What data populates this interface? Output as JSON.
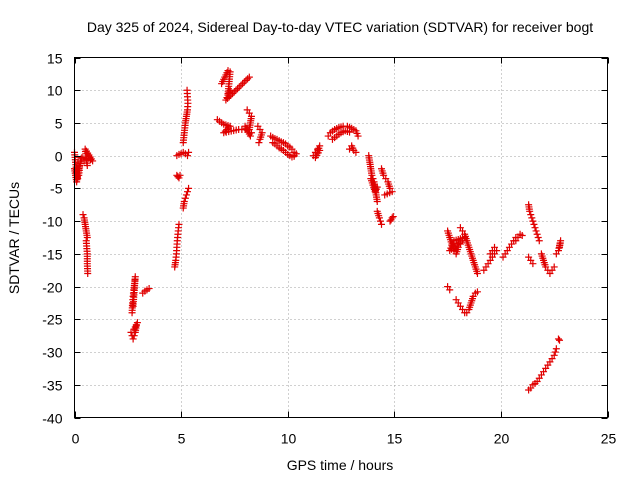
{
  "chart_data": {
    "type": "scatter",
    "title": "Day 325 of 2024, Sidereal Day-to-day VTEC variation (SDTVAR) for receiver bogt",
    "xlabel": "GPS time / hours",
    "ylabel": "SDTVAR / TECUs",
    "xlim": [
      0,
      25
    ],
    "ylim": [
      -40,
      15
    ],
    "xticks": [
      0,
      5,
      10,
      15,
      20,
      25
    ],
    "yticks": [
      15,
      10,
      5,
      0,
      -5,
      -10,
      -15,
      -20,
      -25,
      -30,
      -35,
      -40
    ],
    "grid": true,
    "marker": "+",
    "color": "#e00000",
    "segments": [
      [
        [
          0.0,
          0.5
        ],
        [
          0.05,
          -1.0
        ],
        [
          0.1,
          -2.5
        ],
        [
          0.15,
          -3.5
        ],
        [
          0.2,
          -3.0
        ],
        [
          0.25,
          -1.5
        ],
        [
          0.3,
          -0.5
        ],
        [
          0.35,
          -0.3
        ]
      ],
      [
        [
          0.0,
          -2.0
        ],
        [
          0.05,
          -3.0
        ],
        [
          0.1,
          -4.0
        ],
        [
          0.2,
          -2.0
        ],
        [
          0.3,
          -0.8
        ]
      ],
      [
        [
          0.35,
          -0.5
        ],
        [
          0.45,
          -0.8
        ],
        [
          0.55,
          -0.6
        ],
        [
          0.65,
          -0.4
        ],
        [
          0.75,
          -0.6
        ],
        [
          0.85,
          -0.8
        ],
        [
          0.5,
          1.0
        ],
        [
          0.6,
          -1.5
        ]
      ],
      [
        [
          0.4,
          -9.0
        ],
        [
          0.45,
          -9.5
        ],
        [
          0.5,
          -10.5
        ],
        [
          0.55,
          -11.5
        ],
        [
          0.6,
          -12.5
        ],
        [
          0.55,
          -13.0
        ],
        [
          0.6,
          -15.0
        ],
        [
          0.6,
          -16.5
        ],
        [
          0.62,
          -18.0
        ]
      ],
      [
        [
          2.65,
          -27.0
        ],
        [
          2.7,
          -27.5
        ],
        [
          2.75,
          -28.0
        ],
        [
          2.8,
          -27.5
        ],
        [
          2.85,
          -27.0
        ],
        [
          2.9,
          -26.0
        ],
        [
          2.95,
          -25.5
        ],
        [
          2.8,
          -26.5
        ]
      ],
      [
        [
          2.7,
          -24.0
        ],
        [
          2.72,
          -22.5
        ],
        [
          2.75,
          -21.5
        ],
        [
          2.78,
          -20.5
        ],
        [
          2.82,
          -19.5
        ],
        [
          2.85,
          -18.5
        ],
        [
          2.75,
          -23.0
        ]
      ],
      [
        [
          3.2,
          -21.0
        ],
        [
          3.3,
          -20.7
        ],
        [
          3.4,
          -20.5
        ],
        [
          3.5,
          -20.3
        ]
      ],
      [
        [
          4.7,
          -17.0
        ],
        [
          4.75,
          -16.0
        ],
        [
          4.78,
          -15.0
        ],
        [
          4.8,
          -14.0
        ],
        [
          4.82,
          -13.0
        ],
        [
          4.85,
          -12.0
        ],
        [
          4.88,
          -11.0
        ],
        [
          4.9,
          -10.5
        ]
      ],
      [
        [
          4.8,
          -3.0
        ],
        [
          4.85,
          -3.2
        ],
        [
          4.9,
          -3.4
        ],
        [
          4.95,
          -3.0
        ]
      ],
      [
        [
          4.8,
          0.0
        ],
        [
          4.9,
          0.2
        ],
        [
          5.0,
          0.3
        ],
        [
          5.1,
          0.5
        ],
        [
          5.2,
          0.3
        ],
        [
          5.3,
          0.0
        ],
        [
          5.35,
          0.5
        ]
      ],
      [
        [
          5.1,
          2.0
        ],
        [
          5.15,
          3.5
        ],
        [
          5.2,
          5.0
        ],
        [
          5.25,
          6.0
        ],
        [
          5.3,
          7.0
        ],
        [
          5.32,
          8.0
        ],
        [
          5.3,
          9.0
        ],
        [
          5.28,
          10.0
        ]
      ],
      [
        [
          5.1,
          -8.0
        ],
        [
          5.15,
          -7.0
        ],
        [
          5.2,
          -6.5
        ],
        [
          5.25,
          -6.0
        ],
        [
          5.3,
          -5.5
        ],
        [
          5.35,
          -5.0
        ]
      ],
      [
        [
          6.7,
          5.5
        ],
        [
          7.0,
          4.8
        ],
        [
          7.3,
          4.5
        ],
        [
          7.0,
          3.5
        ],
        [
          7.7,
          4.0
        ],
        [
          8.0,
          4.0
        ]
      ],
      [
        [
          6.9,
          11.0
        ],
        [
          7.2,
          13.0
        ],
        [
          7.3,
          12.8
        ],
        [
          7.2,
          9.5
        ],
        [
          7.3,
          10.0
        ],
        [
          7.1,
          8.5
        ],
        [
          8.2,
          12.0
        ]
      ],
      [
        [
          8.1,
          7.0
        ],
        [
          8.2,
          6.5
        ],
        [
          8.3,
          6.0
        ],
        [
          8.2,
          4.0
        ],
        [
          8.3,
          3.5
        ],
        [
          8.25,
          3.0
        ],
        [
          8.0,
          4.5
        ]
      ],
      [
        [
          8.6,
          4.5
        ],
        [
          8.7,
          4.0
        ],
        [
          8.8,
          3.5
        ],
        [
          8.7,
          2.5
        ],
        [
          8.65,
          2.0
        ]
      ],
      [
        [
          9.2,
          3.0
        ],
        [
          9.3,
          2.8
        ],
        [
          9.4,
          2.6
        ],
        [
          9.5,
          2.5
        ],
        [
          9.6,
          2.3
        ],
        [
          9.7,
          2.1
        ],
        [
          9.8,
          2.0
        ],
        [
          9.9,
          1.8
        ],
        [
          10.0,
          1.5
        ],
        [
          10.1,
          1.3
        ],
        [
          10.2,
          1.0
        ],
        [
          10.3,
          0.5
        ]
      ],
      [
        [
          9.3,
          2.0
        ],
        [
          9.4,
          1.8
        ],
        [
          9.5,
          1.5
        ],
        [
          9.6,
          1.2
        ],
        [
          9.7,
          1.0
        ],
        [
          9.8,
          0.8
        ],
        [
          9.9,
          0.5
        ],
        [
          10.0,
          0.2
        ],
        [
          10.1,
          0.0
        ],
        [
          10.2,
          -0.2
        ],
        [
          10.4,
          0.3
        ],
        [
          10.3,
          -0.1
        ]
      ],
      [
        [
          11.2,
          0.0
        ],
        [
          11.3,
          0.5
        ],
        [
          11.4,
          1.0
        ],
        [
          11.5,
          1.5
        ],
        [
          11.3,
          -0.3
        ],
        [
          11.5,
          0.8
        ]
      ],
      [
        [
          11.9,
          3.0
        ],
        [
          12.0,
          3.5
        ],
        [
          12.2,
          4.0
        ],
        [
          12.4,
          4.3
        ],
        [
          12.6,
          4.5
        ],
        [
          12.8,
          4.5
        ],
        [
          13.0,
          4.2
        ],
        [
          13.2,
          3.8
        ],
        [
          13.3,
          3.0
        ]
      ],
      [
        [
          12.1,
          2.5
        ],
        [
          12.3,
          3.0
        ],
        [
          12.5,
          3.5
        ],
        [
          12.7,
          3.8
        ],
        [
          12.9,
          3.6
        ]
      ],
      [
        [
          12.9,
          1.0
        ],
        [
          13.0,
          1.5
        ],
        [
          13.1,
          0.8
        ],
        [
          13.2,
          0.5
        ]
      ],
      [
        [
          13.8,
          0.0
        ],
        [
          13.85,
          -1.0
        ],
        [
          13.9,
          -2.0
        ],
        [
          13.95,
          -3.0
        ],
        [
          14.0,
          -3.5
        ],
        [
          14.05,
          -4.0
        ],
        [
          14.1,
          -5.0
        ],
        [
          14.15,
          -6.0
        ],
        [
          14.2,
          -7.0
        ]
      ],
      [
        [
          13.9,
          -3.5
        ],
        [
          14.0,
          -4.5
        ],
        [
          14.1,
          -5.5
        ],
        [
          14.2,
          -4.8
        ]
      ],
      [
        [
          14.2,
          -8.5
        ],
        [
          14.3,
          -9.5
        ],
        [
          14.35,
          -10.0
        ],
        [
          14.4,
          -10.5
        ]
      ],
      [
        [
          14.4,
          -2.0
        ],
        [
          14.5,
          -3.0
        ],
        [
          14.6,
          -3.5
        ],
        [
          14.7,
          -4.0
        ],
        [
          14.8,
          -5.0
        ],
        [
          14.9,
          -5.5
        ],
        [
          14.55,
          -6.0
        ]
      ],
      [
        [
          14.8,
          -10.0
        ],
        [
          14.85,
          -9.8
        ],
        [
          14.9,
          -9.5
        ],
        [
          14.95,
          -9.3
        ]
      ],
      [
        [
          17.5,
          -20.0
        ],
        [
          17.6,
          -20.5
        ]
      ],
      [
        [
          17.5,
          -11.5
        ],
        [
          17.6,
          -12.5
        ],
        [
          17.7,
          -13.5
        ],
        [
          17.8,
          -14.5
        ],
        [
          17.9,
          -15.0
        ],
        [
          18.0,
          -14.0
        ],
        [
          18.1,
          -13.5
        ],
        [
          18.2,
          -13.0
        ],
        [
          17.6,
          -14.5
        ],
        [
          17.8,
          -13.0
        ],
        [
          18.0,
          -12.8
        ],
        [
          18.3,
          -12.5
        ]
      ],
      [
        [
          18.1,
          -11.0
        ],
        [
          18.2,
          -11.5
        ],
        [
          18.3,
          -12.0
        ],
        [
          18.4,
          -13.0
        ],
        [
          18.5,
          -14.0
        ],
        [
          18.6,
          -15.0
        ],
        [
          18.7,
          -16.0
        ],
        [
          18.8,
          -17.0
        ],
        [
          18.9,
          -18.0
        ]
      ],
      [
        [
          17.9,
          -22.0
        ],
        [
          18.0,
          -22.5
        ],
        [
          18.1,
          -23.0
        ],
        [
          18.2,
          -23.5
        ],
        [
          18.3,
          -24.0
        ],
        [
          18.4,
          -24.0
        ],
        [
          18.5,
          -23.5
        ],
        [
          18.6,
          -22.5
        ],
        [
          18.7,
          -21.5
        ],
        [
          18.8,
          -21.0
        ],
        [
          18.9,
          -20.8
        ]
      ],
      [
        [
          19.2,
          -17.5
        ],
        [
          19.3,
          -17.0
        ],
        [
          19.4,
          -16.5
        ],
        [
          19.5,
          -16.0
        ],
        [
          19.6,
          -15.5
        ],
        [
          19.7,
          -15.0
        ]
      ],
      [
        [
          19.5,
          -15.0
        ],
        [
          19.6,
          -14.5
        ],
        [
          19.7,
          -14.0
        ],
        [
          19.8,
          -14.5
        ]
      ],
      [
        [
          20.1,
          -15.5
        ],
        [
          20.2,
          -15.0
        ],
        [
          20.3,
          -14.5
        ],
        [
          20.4,
          -14.0
        ],
        [
          20.5,
          -13.5
        ],
        [
          20.6,
          -13.0
        ],
        [
          20.7,
          -12.5
        ]
      ],
      [
        [
          20.7,
          -13.0
        ],
        [
          20.8,
          -12.5
        ],
        [
          20.9,
          -12.0
        ],
        [
          21.0,
          -12.2
        ]
      ],
      [
        [
          21.3,
          -7.5
        ],
        [
          21.35,
          -8.5
        ],
        [
          21.4,
          -9.0
        ],
        [
          21.45,
          -9.5
        ],
        [
          21.5,
          -10.0
        ],
        [
          21.55,
          -10.5
        ],
        [
          21.6,
          -11.0
        ],
        [
          21.65,
          -11.5
        ],
        [
          21.7,
          -12.0
        ],
        [
          21.75,
          -12.5
        ],
        [
          21.8,
          -13.0
        ]
      ],
      [
        [
          21.3,
          -15.5
        ],
        [
          21.4,
          -16.0
        ],
        [
          21.5,
          -16.5
        ]
      ],
      [
        [
          21.9,
          -15.0
        ],
        [
          22.0,
          -16.0
        ],
        [
          22.1,
          -17.0
        ],
        [
          22.2,
          -17.5
        ],
        [
          22.3,
          -18.0
        ],
        [
          22.4,
          -17.5
        ],
        [
          22.5,
          -17.0
        ]
      ],
      [
        [
          21.3,
          -35.8
        ],
        [
          21.4,
          -35.5
        ],
        [
          21.5,
          -35.0
        ],
        [
          21.6,
          -34.8
        ],
        [
          21.7,
          -34.5
        ],
        [
          21.8,
          -34.0
        ],
        [
          21.9,
          -33.5
        ],
        [
          22.0,
          -33.0
        ],
        [
          22.1,
          -32.5
        ],
        [
          22.2,
          -32.0
        ],
        [
          22.3,
          -31.5
        ],
        [
          22.4,
          -31.0
        ],
        [
          22.5,
          -30.5
        ],
        [
          22.55,
          -30.0
        ],
        [
          22.6,
          -29.5
        ]
      ],
      [
        [
          22.7,
          -28.0
        ],
        [
          22.75,
          -28.2
        ]
      ],
      [
        [
          22.6,
          -15.0
        ],
        [
          22.7,
          -14.5
        ],
        [
          22.8,
          -13.0
        ],
        [
          22.75,
          -14.0
        ]
      ]
    ]
  }
}
